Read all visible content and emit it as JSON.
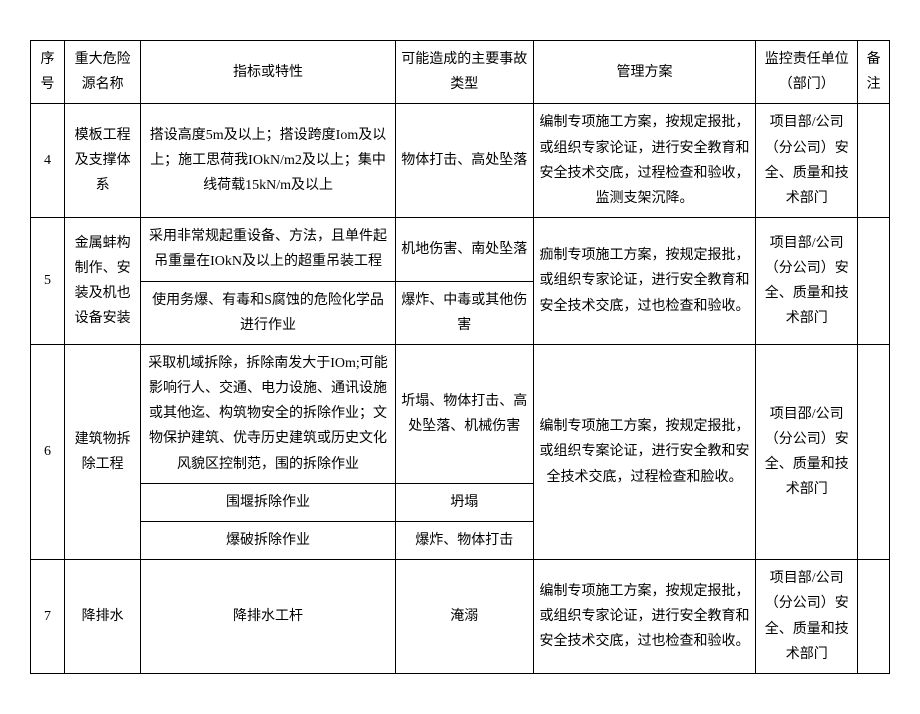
{
  "headers": {
    "seq": "序号",
    "name": "重大危险源名称",
    "char": "指标或特性",
    "accident": "可能造成的主要事故类型",
    "mgmt": "管理方案",
    "dept": "监控责任单位（部门）",
    "note": "备注"
  },
  "rows": {
    "r4": {
      "seq": "4",
      "name": "模板工程及支撑体系",
      "char": "搭设高度5m及以上；搭设跨度Iom及以上；施工思荷我IOkN/m2及以上；集中线荷载15kN/m及以上",
      "accident": "物体打击、高处坠落",
      "mgmt": "编制专项施工方案，按规定报批，或组织专家论证，进行安全教育和安全技术交底，过程检查和验收，监测支架沉降。",
      "dept": "项目部/公司（分公司）安全、质量和技术部门"
    },
    "r5": {
      "seq": "5",
      "name": "金属蚌构制作、安装及机也设备安装",
      "char1": "采用非常规起重设备、方法，且单件起吊重量在IOkN及以上的超重吊装工程",
      "accident1": "机地伤害、南处坠落",
      "char2": "使用务爆、有毒和S腐蚀的危险化学品进行作业",
      "accident2": "爆炸、中毒或其他伤害",
      "mgmt": "痂制专项施工方案，按规定报批，或组织专家论证，进行安全教育和安全技术交底，过也检查和验收。",
      "dept": "项目部/公司（分公司）安全、质量和技术部门"
    },
    "r6": {
      "seq": "6",
      "name": "建筑物拆除工程",
      "char1": "采取机域拆除，拆除南发大于IOm;可能影响行人、交通、电力设施、通讯设施或其他迄、构筑物安全的拆除作业；文物保护建筑、优寺历史建筑或历史文化风貌区控制范，围的拆除作业",
      "accident1": "圻塌、物体打击、高处坠落、机械伤害",
      "char2": "围堰拆除作业",
      "accident2": "坍塌",
      "char3": "爆破拆除作业",
      "accident3": "爆炸、物体打击",
      "mgmt": "编制专项施工方案，按规定报批，或组织专案论证，进行安全教和安全技术交底，过程检查和脸收。",
      "dept": "项目邵/公司（分公司）安全、质量和技术部门"
    },
    "r7": {
      "seq": "7",
      "name": "降排水",
      "char": "降排水工杆",
      "accident": "淹溺",
      "mgmt": "编制专项施工方案，按规定报批，或组织专家论证，进行安全教育和安全技术交底，过也检查和验收。",
      "dept": "项目部/公司（分公司）安全、质量和技术部门"
    }
  }
}
